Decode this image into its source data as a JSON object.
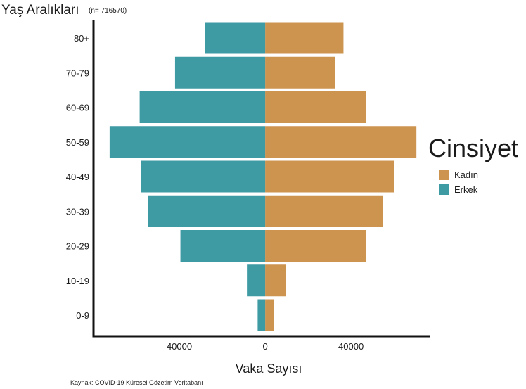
{
  "chart_data": {
    "type": "bar",
    "orientation": "horizontal",
    "title": "Yaş Aralıkları",
    "subtitle": "(n= 716570)",
    "xlabel": "Vaka Sayısı",
    "ylabel": "",
    "categories": [
      "80+",
      "70-79",
      "60-69",
      "50-59",
      "40-49",
      "30-39",
      "20-29",
      "10-19",
      "0-9"
    ],
    "series": [
      {
        "name": "Kadın",
        "color": "#CD9450",
        "values": [
          36500,
          32500,
          47000,
          70500,
          60000,
          55000,
          47000,
          9500,
          4000
        ],
        "direction": "right"
      },
      {
        "name": "Erkek",
        "color": "#3E9AA3",
        "values": [
          28000,
          42000,
          58500,
          72500,
          58000,
          54500,
          39500,
          8500,
          3500
        ],
        "direction": "left"
      }
    ],
    "xticks": [
      {
        "value": -40000,
        "label": "40000"
      },
      {
        "value": 0,
        "label": "0"
      },
      {
        "value": 40000,
        "label": "40000"
      }
    ],
    "xlim": [
      -80000,
      77000
    ],
    "legend": {
      "title": "Cinsiyet",
      "placement": "right"
    },
    "grid": false,
    "source": "Kaynak: COVID-19 Küresel Gözetim Veritabanı"
  }
}
